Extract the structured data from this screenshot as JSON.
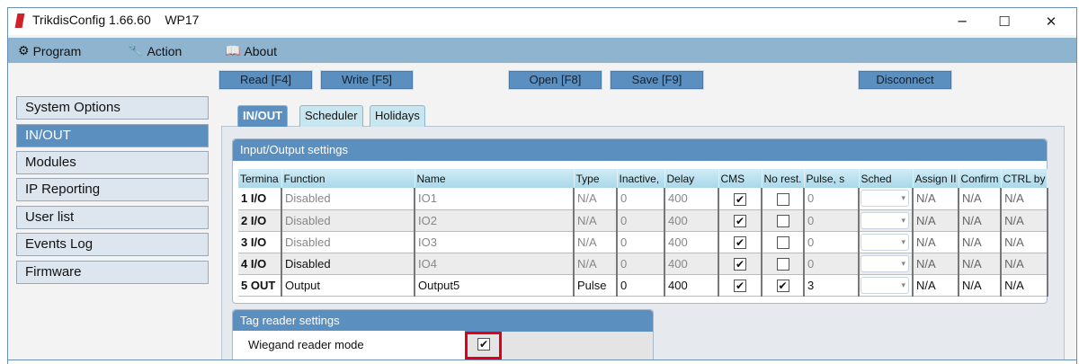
{
  "window": {
    "title": "TrikdisConfig 1.66.60    WP17",
    "controls": {
      "minimize": "─",
      "maximize": "☐",
      "close": "✕"
    }
  },
  "menu": [
    {
      "label": "Program",
      "icon": "gear-icon"
    },
    {
      "label": "Action",
      "icon": "wrench-icon"
    },
    {
      "label": "About",
      "icon": "book-icon"
    }
  ],
  "toolbar": {
    "read": "Read [F4]",
    "write": "Write [F5]",
    "open": "Open [F8]",
    "save": "Save [F9]",
    "disconnect": "Disconnect"
  },
  "sidebar": {
    "active": "IN/OUT",
    "items": [
      "System Options",
      "IN/OUT",
      "Modules",
      "IP Reporting",
      "User list",
      "Events Log",
      "Firmware"
    ]
  },
  "tabs": {
    "active": "IN/OUT",
    "items": [
      "IN/OUT",
      "Scheduler",
      "Holidays"
    ]
  },
  "io": {
    "title": "Input/Output settings",
    "columns": [
      "Terminal",
      "Function",
      "Name",
      "Type",
      "Inactive, ms",
      "Delay",
      "CMS",
      "No rest.",
      "Pulse, s",
      "Sched",
      "Assign ID",
      "Confirm",
      "CTRL by"
    ],
    "column_labels_visible": [
      "Termina",
      "Function",
      "Name",
      "Type",
      "Inactive,",
      "Delay",
      "CMS",
      "No rest.",
      "Pulse, s",
      "Sched",
      "Assign II",
      "Confirm",
      "CTRL by"
    ],
    "rows": [
      {
        "terminal": "1 I/O",
        "function": "Disabled",
        "name": "IO1",
        "type": "N/A",
        "inactive": "0",
        "delay": "400",
        "cms": true,
        "no_restore": false,
        "pulse": "0",
        "sched": "",
        "assign": "N/A",
        "confirm": "N/A",
        "ctrl": "N/A",
        "enabled": false
      },
      {
        "terminal": "2 I/O",
        "function": "Disabled",
        "name": "IO2",
        "type": "N/A",
        "inactive": "0",
        "delay": "400",
        "cms": true,
        "no_restore": false,
        "pulse": "0",
        "sched": "",
        "assign": "N/A",
        "confirm": "N/A",
        "ctrl": "N/A",
        "enabled": false
      },
      {
        "terminal": "3 I/O",
        "function": "Disabled",
        "name": "IO3",
        "type": "N/A",
        "inactive": "0",
        "delay": "400",
        "cms": true,
        "no_restore": false,
        "pulse": "0",
        "sched": "",
        "assign": "N/A",
        "confirm": "N/A",
        "ctrl": "N/A",
        "enabled": false
      },
      {
        "terminal": "4 I/O",
        "function": "Disabled",
        "name": "IO4",
        "type": "N/A",
        "inactive": "0",
        "delay": "400",
        "cms": true,
        "no_restore": false,
        "pulse": "0",
        "sched": "",
        "assign": "N/A",
        "confirm": "N/A",
        "ctrl": "N/A",
        "enabled": false
      },
      {
        "terminal": "5 OUT",
        "function": "Output",
        "name": "Output5",
        "type": "Pulse",
        "inactive": "0",
        "delay": "400",
        "cms": true,
        "no_restore": true,
        "pulse": "3",
        "sched": "",
        "assign": "N/A",
        "confirm": "N/A",
        "ctrl": "N/A",
        "enabled": true
      }
    ]
  },
  "tag_reader": {
    "title": "Tag reader settings",
    "wiegand_label": "Wiegand reader mode",
    "wiegand_checked": true,
    "highlight_color": "#e0001b"
  },
  "colors": {
    "accent": "#5b8fc0",
    "menubar": "#8fb4d0"
  }
}
